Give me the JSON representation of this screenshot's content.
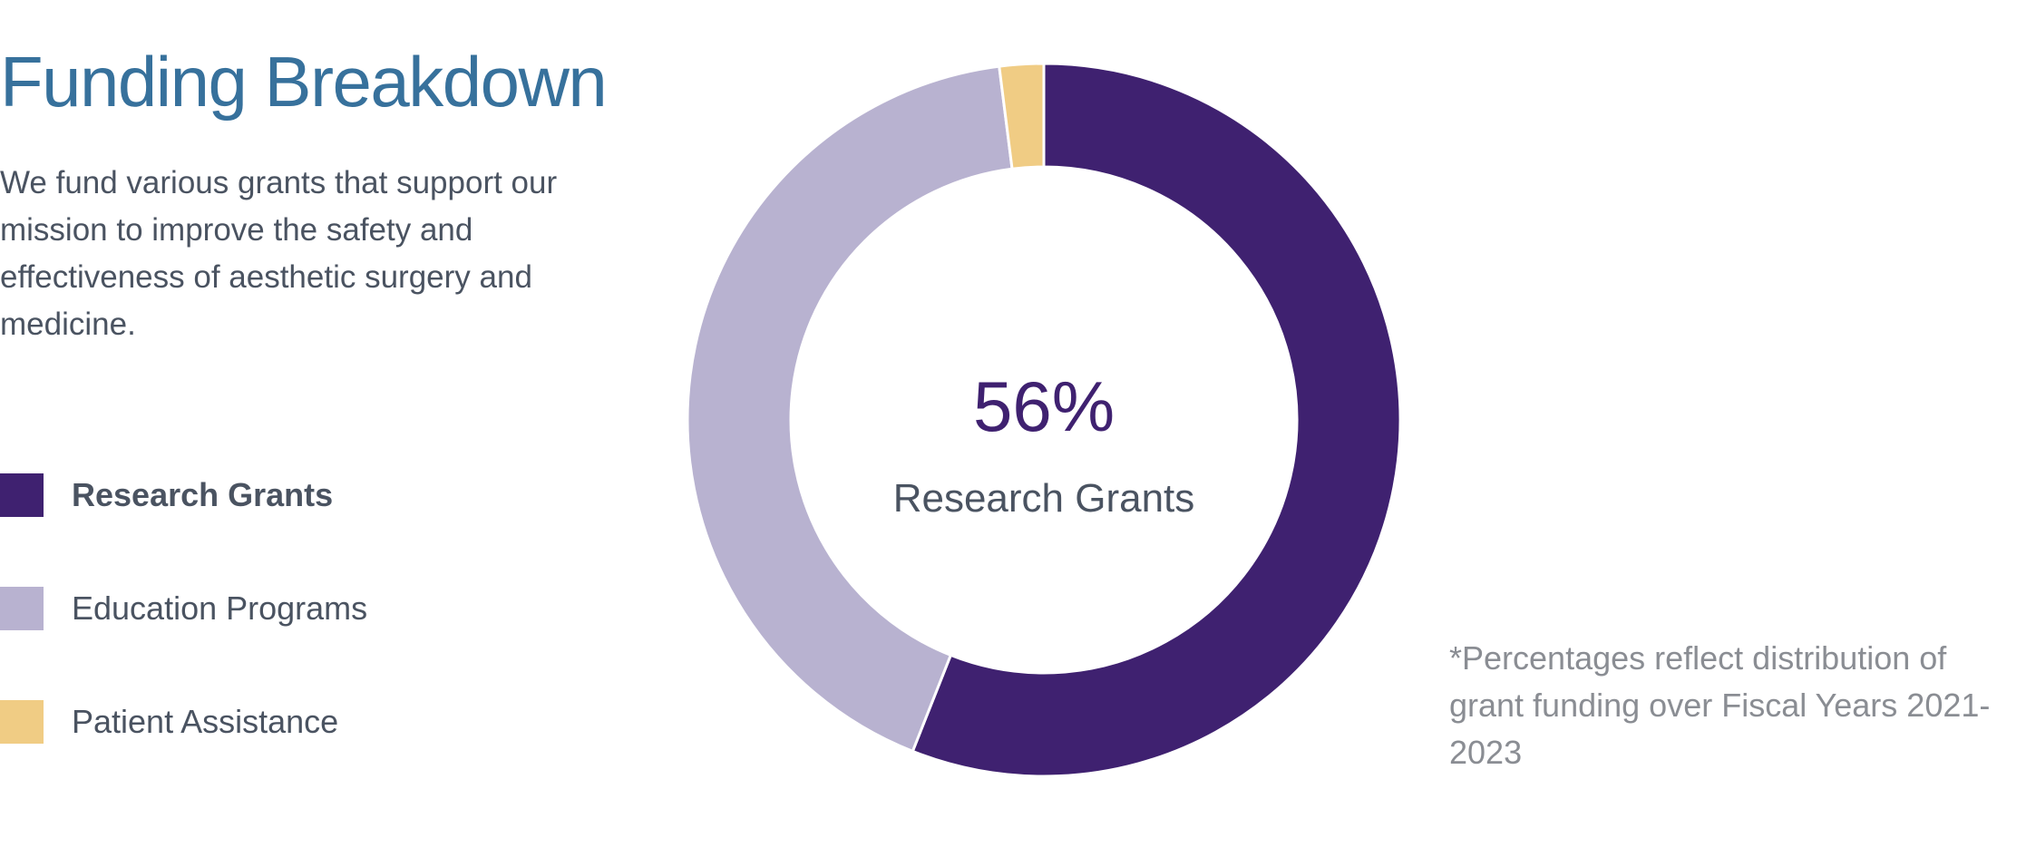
{
  "title": "Funding Breakdown",
  "intro": "We fund various grants that support our mission to improve the safety and effectiveness of aesthetic surgery and medicine.",
  "footnote": "*Percentages reflect distribution of grant funding over Fiscal Years 2021-2023",
  "chart_data": {
    "type": "pie",
    "donut": true,
    "categories": [
      "Research Grants",
      "Education Programs",
      "Patient Assistance"
    ],
    "values": [
      56,
      42,
      2
    ],
    "colors": [
      "#3f2170",
      "#b8b2d0",
      "#f0cc84"
    ],
    "highlighted": "Research Grants",
    "center": {
      "value": "56%",
      "label": "Research Grants"
    },
    "legend": "left",
    "start": "top",
    "direction": "clockwise"
  }
}
